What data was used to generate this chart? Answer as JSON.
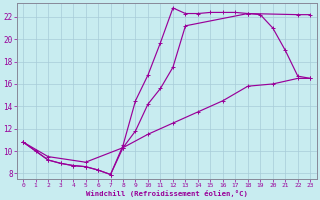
{
  "xlabel": "Windchill (Refroidissement éolien,°C)",
  "xlim": [
    -0.5,
    23.5
  ],
  "ylim": [
    7.5,
    23.2
  ],
  "xticks": [
    0,
    1,
    2,
    3,
    4,
    5,
    6,
    7,
    8,
    9,
    10,
    11,
    12,
    13,
    14,
    15,
    16,
    17,
    18,
    19,
    20,
    21,
    22,
    23
  ],
  "yticks": [
    8,
    10,
    12,
    14,
    16,
    18,
    20,
    22
  ],
  "bg_color": "#c8ecf0",
  "line_color": "#990099",
  "grid_color": "#a8ccd8",
  "curve1_x": [
    0,
    1,
    2,
    3,
    4,
    5,
    6,
    7,
    8,
    9,
    10,
    11,
    12,
    13,
    14,
    15,
    16,
    17,
    18,
    22,
    23
  ],
  "curve1_y": [
    10.8,
    10.0,
    9.2,
    8.9,
    8.7,
    8.6,
    8.3,
    7.9,
    10.5,
    14.5,
    16.8,
    19.7,
    22.8,
    22.3,
    22.3,
    22.4,
    22.4,
    22.4,
    22.3,
    22.2,
    22.2
  ],
  "curve2_x": [
    0,
    2,
    3,
    4,
    5,
    6,
    7,
    8,
    9,
    10,
    11,
    12,
    13,
    18,
    19,
    20,
    21,
    22,
    23
  ],
  "curve2_y": [
    10.8,
    9.2,
    8.9,
    8.7,
    8.6,
    8.3,
    7.9,
    10.3,
    11.8,
    14.2,
    15.6,
    17.5,
    21.2,
    22.3,
    22.2,
    21.0,
    19.0,
    16.7,
    16.5
  ],
  "curve3_x": [
    0,
    2,
    5,
    8,
    10,
    12,
    14,
    16,
    18,
    20,
    22,
    23
  ],
  "curve3_y": [
    10.8,
    9.5,
    9.0,
    10.3,
    11.5,
    12.5,
    13.5,
    14.5,
    15.8,
    16.0,
    16.5,
    16.5
  ]
}
